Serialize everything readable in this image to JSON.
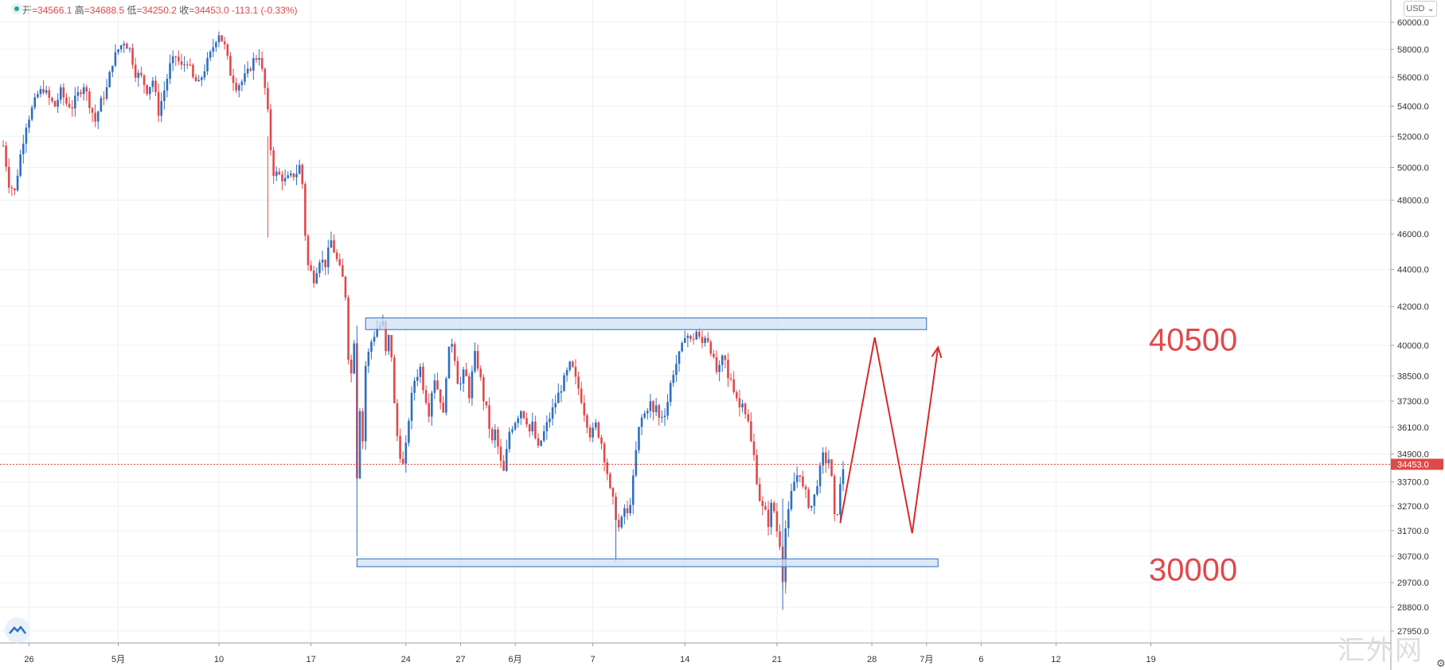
{
  "ohlc": {
    "open_label": "开",
    "open": "=34566.1",
    "high_label": "高",
    "high": "=34688.5",
    "low_label": "低",
    "low": "=34250.2",
    "close_label": "收",
    "close": "=34453.0",
    "change": "-113.1 (-0.33%)"
  },
  "currency": "USD ⌄",
  "watermark": "汇外网",
  "colors": {
    "up": "#2f6fbf",
    "down": "#e0494a",
    "zone_fill": "#cfe0f6",
    "zone_stroke": "#2f6fbf",
    "arrow": "#d62b2b",
    "last_price_bg": "#e0494a"
  },
  "chart_data": {
    "type": "candlestick",
    "title": "",
    "xlabel": "",
    "ylabel": "",
    "y_scale": "log",
    "ylim": [
      27000,
      61200
    ],
    "y_ticks": [
      "60000.0",
      "58000.0",
      "56000.0",
      "54000.0",
      "52000.0",
      "50000.0",
      "48000.0",
      "46000.0",
      "44000.0",
      "42000.0",
      "40000.0",
      "38500.0",
      "37300.0",
      "36100.0",
      "34900.0",
      "33700.0",
      "32700.0",
      "31700.0",
      "30700.0",
      "29700.0",
      "28800.0",
      "27950.0"
    ],
    "x_ticks": [
      {
        "label": "26",
        "bar": 9
      },
      {
        "label": "5月",
        "bar": 40
      },
      {
        "label": "10",
        "bar": 75
      },
      {
        "label": "17",
        "bar": 107
      },
      {
        "label": "24",
        "bar": 140
      },
      {
        "label": "27",
        "bar": 159
      },
      {
        "label": "6月",
        "bar": 178
      },
      {
        "label": "7",
        "bar": 205
      },
      {
        "label": "14",
        "bar": 237
      },
      {
        "label": "21",
        "bar": 269
      },
      {
        "label": "28",
        "bar": 302
      },
      {
        "label": "7月",
        "bar": 321
      },
      {
        "label": "6",
        "bar": 340
      },
      {
        "label": "12",
        "bar": 366
      },
      {
        "label": "19",
        "bar": 399
      }
    ],
    "grid": true,
    "last_price": 34453.0,
    "last_price_label": "34453.0",
    "anchors": [
      [
        0,
        51400
      ],
      [
        2,
        49000
      ],
      [
        4,
        48500
      ],
      [
        6,
        50800
      ],
      [
        8,
        52800
      ],
      [
        10,
        53800
      ],
      [
        12,
        54800
      ],
      [
        14,
        55200
      ],
      [
        16,
        54500
      ],
      [
        18,
        54000
      ],
      [
        20,
        55000
      ],
      [
        22,
        54200
      ],
      [
        24,
        54000
      ],
      [
        26,
        54800
      ],
      [
        28,
        55500
      ],
      [
        30,
        54200
      ],
      [
        32,
        53000
      ],
      [
        34,
        54300
      ],
      [
        36,
        55200
      ],
      [
        38,
        57100
      ],
      [
        40,
        58000
      ],
      [
        42,
        58600
      ],
      [
        44,
        58000
      ],
      [
        46,
        56300
      ],
      [
        48,
        56000
      ],
      [
        50,
        55100
      ],
      [
        52,
        55800
      ],
      [
        54,
        53600
      ],
      [
        56,
        55100
      ],
      [
        58,
        56800
      ],
      [
        60,
        57500
      ],
      [
        62,
        56700
      ],
      [
        64,
        57200
      ],
      [
        66,
        55900
      ],
      [
        68,
        55500
      ],
      [
        70,
        56600
      ],
      [
        72,
        57600
      ],
      [
        74,
        58800
      ],
      [
        75,
        59200
      ],
      [
        77,
        58200
      ],
      [
        79,
        56300
      ],
      [
        81,
        55400
      ],
      [
        83,
        55700
      ],
      [
        85,
        56300
      ],
      [
        87,
        57200
      ],
      [
        89,
        57600
      ],
      [
        91,
        55200
      ],
      [
        92,
        53500
      ],
      [
        93,
        51200
      ],
      [
        94,
        49700
      ],
      [
        96,
        49500
      ],
      [
        98,
        49200
      ],
      [
        100,
        49400
      ],
      [
        102,
        49700
      ],
      [
        103,
        50100
      ],
      [
        104,
        49000
      ],
      [
        105,
        46000
      ],
      [
        106,
        44200
      ],
      [
        108,
        43500
      ],
      [
        110,
        44600
      ],
      [
        112,
        44300
      ],
      [
        114,
        45600
      ],
      [
        116,
        44500
      ],
      [
        118,
        43500
      ],
      [
        119,
        42600
      ],
      [
        120,
        39500
      ],
      [
        121,
        38600
      ],
      [
        122,
        40300
      ],
      [
        123,
        34000
      ],
      [
        124,
        37000
      ],
      [
        125,
        35500
      ],
      [
        126,
        39000
      ],
      [
        128,
        40200
      ],
      [
        130,
        40900
      ],
      [
        132,
        41100
      ],
      [
        133,
        39600
      ],
      [
        134,
        40400
      ],
      [
        135,
        39500
      ],
      [
        136,
        37100
      ],
      [
        137,
        35700
      ],
      [
        138,
        34900
      ],
      [
        139,
        34400
      ],
      [
        140,
        35200
      ],
      [
        141,
        36500
      ],
      [
        142,
        37500
      ],
      [
        143,
        38300
      ],
      [
        145,
        38900
      ],
      [
        146,
        38000
      ],
      [
        147,
        37400
      ],
      [
        148,
        36800
      ],
      [
        149,
        37800
      ],
      [
        150,
        38400
      ],
      [
        152,
        37400
      ],
      [
        153,
        36600
      ],
      [
        154,
        38600
      ],
      [
        155,
        39700
      ],
      [
        156,
        40200
      ],
      [
        157,
        39400
      ],
      [
        158,
        38300
      ],
      [
        159,
        38100
      ],
      [
        160,
        38600
      ],
      [
        161,
        38400
      ],
      [
        162,
        37600
      ],
      [
        163,
        38600
      ],
      [
        164,
        39500
      ],
      [
        165,
        39000
      ],
      [
        166,
        38300
      ],
      [
        167,
        37400
      ],
      [
        168,
        36900
      ],
      [
        169,
        36100
      ],
      [
        170,
        35400
      ],
      [
        171,
        35900
      ],
      [
        172,
        35200
      ],
      [
        173,
        34500
      ],
      [
        174,
        34100
      ],
      [
        175,
        35000
      ],
      [
        176,
        35900
      ],
      [
        178,
        36400
      ],
      [
        180,
        36900
      ],
      [
        182,
        36400
      ],
      [
        183,
        35900
      ],
      [
        184,
        36200
      ],
      [
        185,
        35600
      ],
      [
        186,
        35100
      ],
      [
        187,
        35500
      ],
      [
        189,
        36200
      ],
      [
        191,
        36900
      ],
      [
        193,
        37600
      ],
      [
        195,
        38300
      ],
      [
        197,
        39000
      ],
      [
        198,
        38800
      ],
      [
        199,
        38300
      ],
      [
        200,
        37900
      ],
      [
        201,
        37400
      ],
      [
        202,
        36800
      ],
      [
        203,
        36300
      ],
      [
        204,
        35800
      ],
      [
        205,
        35900
      ],
      [
        206,
        36200
      ],
      [
        208,
        35400
      ],
      [
        210,
        34100
      ],
      [
        211,
        33300
      ],
      [
        212,
        32900
      ],
      [
        213,
        32300
      ],
      [
        214,
        31800
      ],
      [
        215,
        32100
      ],
      [
        216,
        32600
      ],
      [
        217,
        32300
      ],
      [
        218,
        32900
      ],
      [
        219,
        33800
      ],
      [
        220,
        35000
      ],
      [
        221,
        36000
      ],
      [
        222,
        36500
      ],
      [
        223,
        36700
      ],
      [
        224,
        37000
      ],
      [
        225,
        37200
      ],
      [
        226,
        36700
      ],
      [
        227,
        37100
      ],
      [
        228,
        36500
      ],
      [
        230,
        36800
      ],
      [
        231,
        37300
      ],
      [
        232,
        38100
      ],
      [
        233,
        38700
      ],
      [
        234,
        39100
      ],
      [
        235,
        39500
      ],
      [
        236,
        39900
      ],
      [
        237,
        40600
      ],
      [
        238,
        40500
      ],
      [
        239,
        40200
      ],
      [
        240,
        40400
      ],
      [
        241,
        40700
      ],
      [
        242,
        40300
      ],
      [
        243,
        40100
      ],
      [
        244,
        40500
      ],
      [
        245,
        40300
      ],
      [
        246,
        39800
      ],
      [
        247,
        39200
      ],
      [
        248,
        38700
      ],
      [
        249,
        38800
      ],
      [
        250,
        39300
      ],
      [
        251,
        39200
      ],
      [
        252,
        38300
      ],
      [
        253,
        38400
      ],
      [
        254,
        37900
      ],
      [
        255,
        37500
      ],
      [
        256,
        37000
      ],
      [
        257,
        37400
      ],
      [
        258,
        36800
      ],
      [
        259,
        36300
      ],
      [
        260,
        35400
      ],
      [
        261,
        34800
      ],
      [
        262,
        33800
      ],
      [
        263,
        33000
      ],
      [
        264,
        32600
      ],
      [
        265,
        32400
      ],
      [
        266,
        32000
      ],
      [
        267,
        32700
      ],
      [
        268,
        32500
      ],
      [
        269,
        31700
      ],
      [
        270,
        31200
      ],
      [
        271,
        29900
      ],
      [
        272,
        31800
      ],
      [
        273,
        32400
      ],
      [
        274,
        33200
      ],
      [
        275,
        33700
      ],
      [
        276,
        34000
      ],
      [
        277,
        34100
      ],
      [
        278,
        33400
      ],
      [
        279,
        33200
      ],
      [
        280,
        32800
      ],
      [
        281,
        32700
      ],
      [
        282,
        33100
      ],
      [
        283,
        33700
      ],
      [
        284,
        34200
      ],
      [
        285,
        34800
      ],
      [
        286,
        34600
      ],
      [
        287,
        34700
      ],
      [
        288,
        33800
      ],
      [
        289,
        32200
      ],
      [
        290,
        32500
      ],
      [
        291,
        33500
      ],
      [
        292,
        34300
      ]
    ],
    "zones": [
      {
        "label": "40500",
        "low": 40800,
        "high": 41400,
        "from_bar": 126,
        "to_bar": 321
      },
      {
        "label": "30000",
        "low": 30300,
        "high": 30600,
        "from_bar": 123,
        "to_bar": 325
      }
    ],
    "projection": [
      {
        "bar": 291,
        "price": 32000
      },
      {
        "bar": 303,
        "price": 40400
      },
      {
        "bar": 316,
        "price": 31600
      },
      {
        "bar": 325,
        "price": 39900
      }
    ],
    "zone_labels": [
      {
        "text": "40500",
        "price": 40300
      },
      {
        "text": "30000",
        "price": 30200
      }
    ]
  }
}
